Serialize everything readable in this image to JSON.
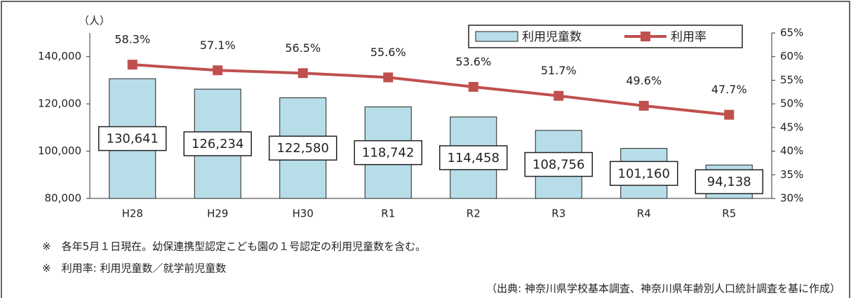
{
  "chart_data": {
    "type": "bar_line",
    "y_unit_label": "（人）",
    "categories": [
      "H28",
      "H29",
      "H30",
      "R1",
      "R2",
      "R3",
      "R4",
      "R5"
    ],
    "series": [
      {
        "name": "利用児童数",
        "color": "#b7dde8",
        "type": "bar",
        "values": [
          130641,
          126234,
          122580,
          118742,
          114458,
          108756,
          101160,
          94138
        ],
        "value_labels": [
          "130,641",
          "126,234",
          "122,580",
          "118,742",
          "114,458",
          "108,756",
          "101,160",
          "94,138"
        ]
      },
      {
        "name": "利用率",
        "color": "#c0504d",
        "type": "line",
        "axis": "y2",
        "values": [
          58.3,
          57.1,
          56.5,
          55.6,
          53.6,
          51.7,
          49.6,
          47.7
        ],
        "value_labels": [
          "58.3%",
          "57.1%",
          "56.5%",
          "55.6%",
          "53.6%",
          "51.7%",
          "49.6%",
          "47.7%"
        ]
      }
    ],
    "ylim": [
      80000,
      150000
    ],
    "yticks": [
      {
        "value": 80000,
        "label": "80,000"
      },
      {
        "value": 100000,
        "label": "100,000"
      },
      {
        "value": 120000,
        "label": "120,000"
      },
      {
        "value": 140000,
        "label": "140,000"
      }
    ],
    "y2lim": [
      30,
      65
    ],
    "y2ticks": [
      {
        "value": 30,
        "label": "30%"
      },
      {
        "value": 35,
        "label": "35%"
      },
      {
        "value": 40,
        "label": "40%"
      },
      {
        "value": 45,
        "label": "45%"
      },
      {
        "value": 50,
        "label": "50%"
      },
      {
        "value": 55,
        "label": "55%"
      },
      {
        "value": 60,
        "label": "60%"
      },
      {
        "value": 65,
        "label": "65%"
      }
    ],
    "legend": "top-right",
    "notes": [
      "※　各年5月１日現在。幼保連携型認定こども園の１号認定の利用児童数を含む。",
      "※　利用率: 利用児童数／就学前児童数",
      "（出典: 神奈川県学校基本調査、神奈川県年齢別人口統計調査を基に作成）"
    ]
  }
}
